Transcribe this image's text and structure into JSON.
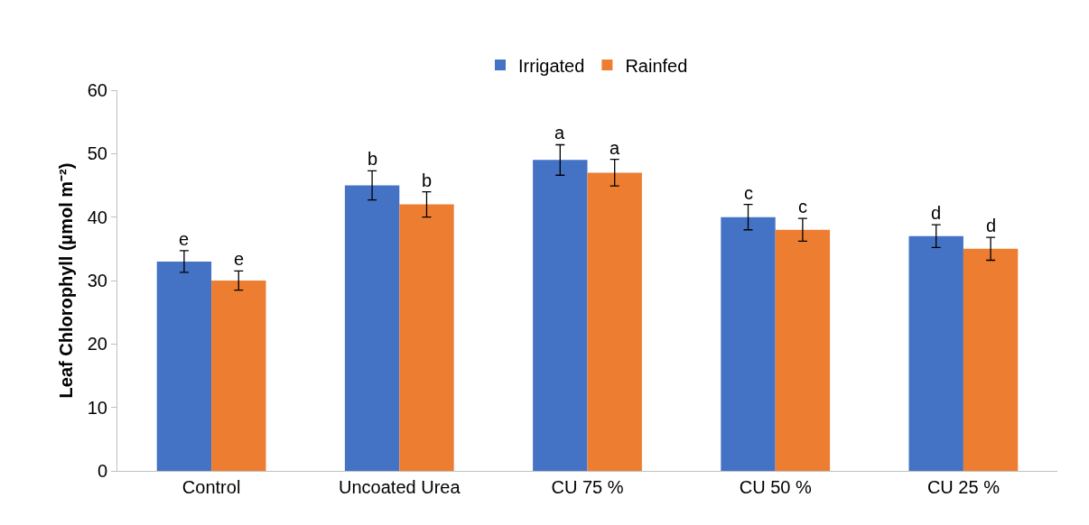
{
  "chart_data": {
    "type": "bar",
    "ylabel": "Leaf Chlorophyll (µmol m⁻²)",
    "categories": [
      "Control",
      "Uncoated Urea",
      "CU 75 %",
      "CU 50 %",
      "CU 25 %"
    ],
    "series": [
      {
        "name": "Irrigated",
        "color": "#4472c4",
        "values": [
          33,
          45,
          49,
          40,
          37
        ],
        "errors": [
          1.7,
          2.3,
          2.4,
          2,
          1.8
        ],
        "value_labels": [
          "e",
          "b",
          "a",
          "c",
          "d"
        ]
      },
      {
        "name": "Rainfed",
        "color": "#ed7d31",
        "values": [
          30,
          42,
          47,
          38,
          35
        ],
        "errors": [
          1.5,
          2,
          2.1,
          1.8,
          1.8
        ],
        "value_labels": [
          "e",
          "b",
          "a",
          "c",
          "d"
        ]
      }
    ],
    "ylim": [
      0,
      60
    ],
    "yticks": [
      0,
      10,
      20,
      30,
      40,
      50,
      60
    ],
    "grid": false,
    "legend": "top"
  }
}
